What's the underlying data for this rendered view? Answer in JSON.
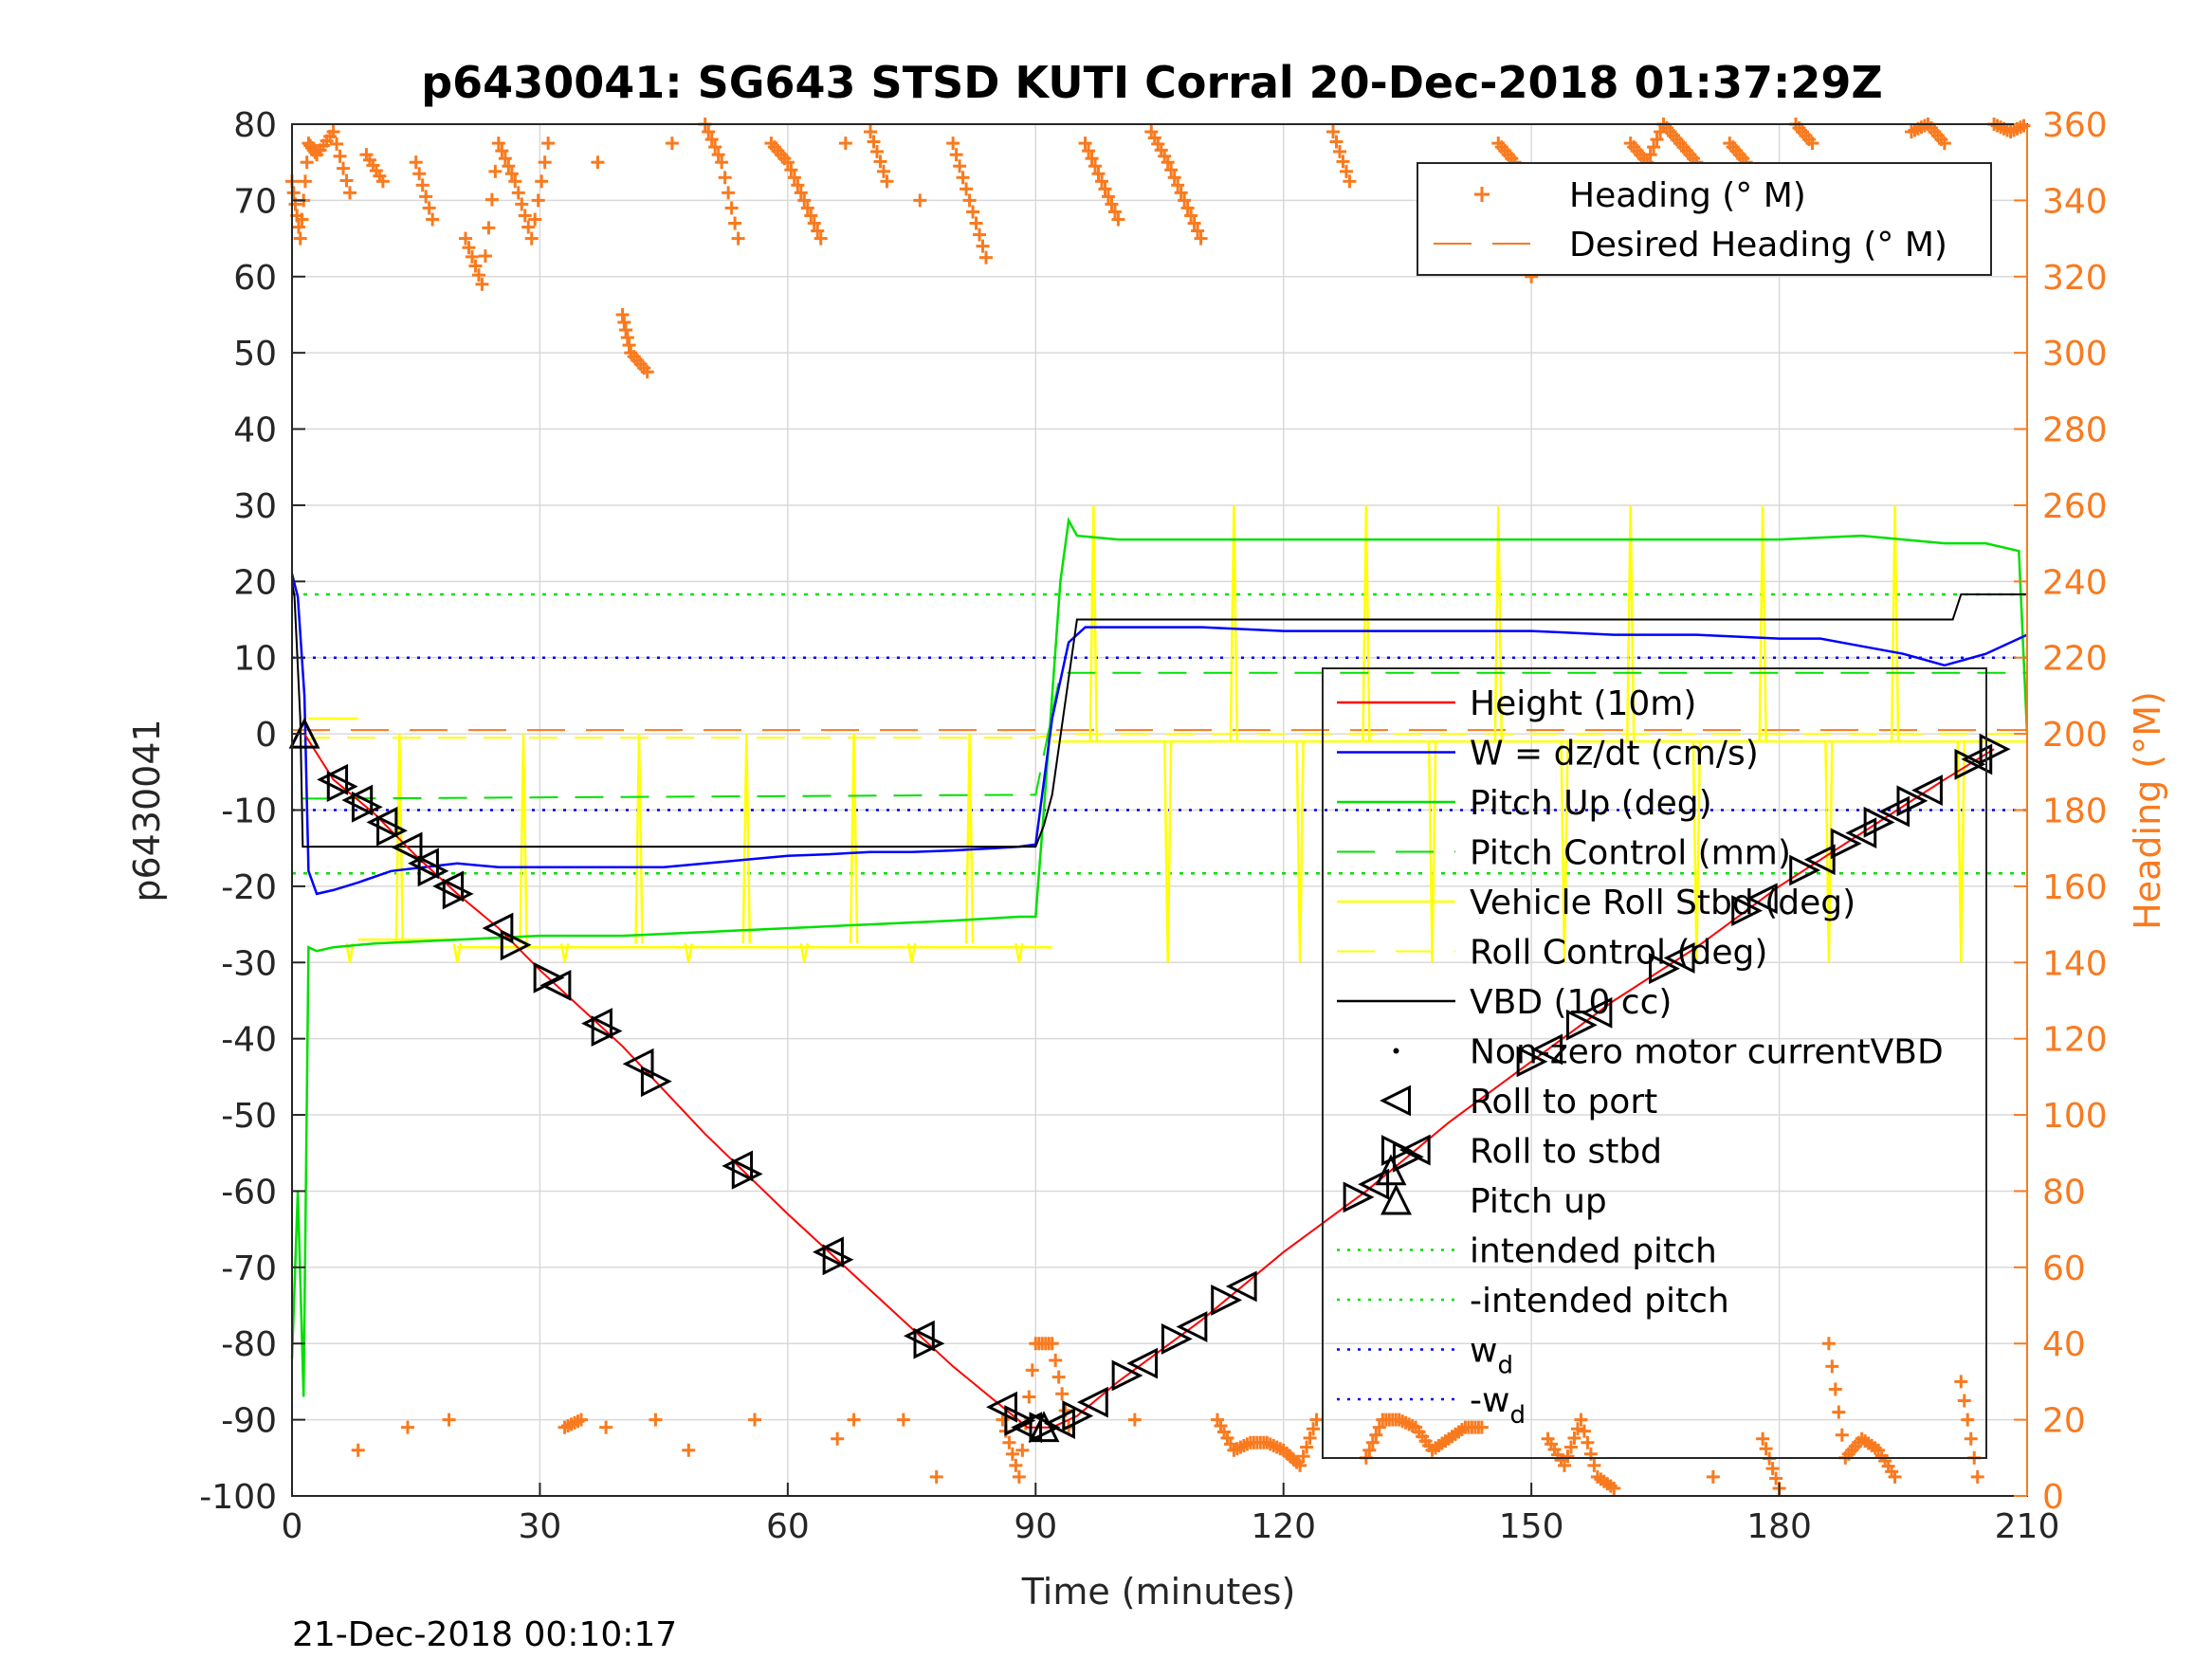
{
  "title": "p6430041: SG643 STSD KUTI Corral 20-Dec-2018 01:37:29Z",
  "timestamp": "21-Dec-2018 00:10:17",
  "colors": {
    "heading": "#f97a1e",
    "height": "#ff0000",
    "w": "#0000ff",
    "pitch": "#00e000",
    "roll": "#ffff00",
    "vbd": "#000000",
    "grid": "#d9d9d9"
  },
  "chart_data": {
    "type": "line",
    "xlabel": "Time (minutes)",
    "ylabel": "p6430041",
    "y2label": "Heading (°M)",
    "xlim": [
      0,
      210
    ],
    "ylim": [
      -100,
      80
    ],
    "y2lim": [
      0,
      360
    ],
    "grid": true,
    "legend_placement": "inside-right",
    "heading_legend_placement": "top-right",
    "xticks": [
      "0",
      "30",
      "60",
      "90",
      "120",
      "150",
      "180",
      "210"
    ],
    "xtick_values": [
      0,
      30,
      60,
      90,
      120,
      150,
      180,
      210
    ],
    "yticks": [
      "80",
      "70",
      "60",
      "50",
      "40",
      "30",
      "20",
      "10",
      "0",
      "-10",
      "-20",
      "-30",
      "-40",
      "-50",
      "-60",
      "-70",
      "-80",
      "-90",
      "-100"
    ],
    "ytick_values": [
      80,
      70,
      60,
      50,
      40,
      30,
      20,
      10,
      0,
      -10,
      -20,
      -30,
      -40,
      -50,
      -60,
      -70,
      -80,
      -90,
      -100
    ],
    "y2ticks": [
      "360",
      "340",
      "320",
      "300",
      "280",
      "260",
      "240",
      "220",
      "200",
      "180",
      "160",
      "140",
      "120",
      "100",
      "80",
      "60",
      "40",
      "20",
      "0"
    ],
    "y2tick_values": [
      360,
      340,
      320,
      300,
      280,
      260,
      240,
      220,
      200,
      180,
      160,
      140,
      120,
      100,
      80,
      60,
      40,
      20,
      0
    ],
    "heading_legend": [
      "Heading (° M)",
      "Desired Heading (° M)"
    ],
    "legend": [
      {
        "label": "Height (10m)"
      },
      {
        "label": "W = dz/dt (cm/s)"
      },
      {
        "label": "Pitch Up (deg)"
      },
      {
        "label": "Pitch Control (mm)"
      },
      {
        "label": "Vehicle Roll Stbd (deg)"
      },
      {
        "label": "Roll Control (deg)"
      },
      {
        "label": "VBD (10 cc)"
      },
      {
        "label": "Non-zero motor currentVBD"
      },
      {
        "label": "Roll to port"
      },
      {
        "label": "Roll to stbd"
      },
      {
        "label": "Pitch up"
      },
      {
        "label": "intended pitch"
      },
      {
        "label": "-intended pitch"
      },
      {
        "label": "w",
        "sub": "d"
      },
      {
        "label": "-w",
        "sub": "d"
      }
    ],
    "reference_lines": {
      "intended_pitch": 18.3,
      "minus_intended_pitch": -18.3,
      "w_d": 10,
      "minus_w_d": -10,
      "desired_heading": 201
    },
    "series": {
      "height": {
        "x": [
          1.5,
          5,
          10,
          15,
          20,
          25,
          30,
          40,
          50,
          60,
          70,
          80,
          89,
          92,
          95,
          100,
          110,
          120,
          130,
          140,
          150,
          160,
          170,
          180,
          190,
          200,
          206
        ],
        "y": [
          0,
          -6,
          -10.5,
          -16,
          -21,
          -25.5,
          -31,
          -41,
          -52.5,
          -63,
          -73,
          -83,
          -91,
          -91,
          -89.5,
          -85,
          -77,
          -68,
          -60,
          -51,
          -43,
          -35,
          -28,
          -20,
          -13,
          -6,
          -2
        ]
      },
      "w": {
        "x": [
          0,
          0.7,
          1.5,
          2,
          3,
          5,
          8,
          12,
          16,
          20,
          25,
          30,
          35,
          40,
          45,
          50,
          55,
          60,
          65,
          70,
          75,
          80,
          85,
          88,
          90,
          92,
          94,
          96,
          100,
          110,
          120,
          130,
          140,
          150,
          160,
          170,
          180,
          185,
          190,
          195,
          200,
          205,
          210
        ],
        "y": [
          21,
          18,
          5,
          -18,
          -21,
          -20.5,
          -19.5,
          -18,
          -17.5,
          -17,
          -17.5,
          -17.5,
          -17.5,
          -17.5,
          -17.5,
          -17,
          -16.5,
          -16,
          -15.8,
          -15.5,
          -15.5,
          -15.3,
          -15,
          -14.8,
          -14.5,
          2,
          12,
          14,
          14,
          14,
          13.5,
          13.5,
          13.5,
          13.5,
          13,
          13,
          12.5,
          12.5,
          11.5,
          10.5,
          9,
          10.5,
          13
        ]
      },
      "pitch": {
        "x": [
          0,
          0.7,
          1.4,
          2,
          3,
          5,
          10,
          20,
          30,
          40,
          50,
          60,
          70,
          80,
          88,
          90,
          91,
          93,
          94,
          95,
          100,
          110,
          120,
          140,
          160,
          180,
          190,
          200,
          205,
          209,
          210
        ],
        "y": [
          -82,
          -60,
          -87,
          -28,
          -28.5,
          -28,
          -27.5,
          -27,
          -26.5,
          -26.5,
          -26,
          -25.5,
          -25,
          -24.5,
          -24,
          -24,
          -10,
          20,
          28,
          26,
          25.5,
          25.5,
          25.5,
          25.5,
          25.5,
          25.5,
          26,
          25,
          25,
          24,
          0
        ]
      },
      "pitch_control": {
        "x": [
          1.2,
          3,
          90,
          93,
          210
        ],
        "y": [
          -8.5,
          -8.5,
          -8,
          8,
          8
        ]
      },
      "roll_control": {
        "x": [
          1.2,
          3,
          90,
          93,
          210
        ],
        "y": [
          -1,
          -0.5,
          -0.5,
          0,
          0
        ]
      },
      "vbd": {
        "x": [
          0,
          0.3,
          1,
          1.3,
          3,
          10,
          20,
          40,
          60,
          80,
          90,
          91,
          92,
          95,
          100,
          120,
          150,
          180,
          201,
          202,
          210
        ],
        "y": [
          20,
          18,
          2,
          -14.8,
          -14.8,
          -14.8,
          -14.8,
          -14.8,
          -14.8,
          -14.8,
          -14.8,
          -12,
          -8,
          15,
          15,
          15,
          15,
          15,
          15,
          18.3,
          18.3
        ]
      },
      "roll": {
        "baseline_segments": [
          {
            "x": [
              2,
              8
            ],
            "y": 2
          },
          {
            "x": [
              8,
              20
            ],
            "y": -27
          },
          {
            "x": [
              20,
              92
            ],
            "y": -28
          },
          {
            "x": [
              92,
              210
            ],
            "y": -1
          }
        ],
        "spikes_x": [
          7,
          13,
          20,
          28,
          33,
          42,
          48,
          55,
          62,
          68,
          75,
          82,
          88,
          97,
          106,
          114,
          122,
          130,
          138,
          146,
          154,
          162,
          170,
          178,
          186,
          194,
          202
        ]
      },
      "heading": {
        "x": [
          0,
          1,
          2,
          3,
          5,
          7,
          8,
          9,
          11,
          14,
          15,
          17,
          19,
          21,
          23,
          25,
          27,
          29,
          31,
          33,
          35,
          37,
          38,
          40,
          41,
          43,
          44,
          46,
          48,
          50,
          52,
          54,
          56,
          58,
          60,
          62,
          64,
          66,
          67,
          68,
          70,
          72,
          74,
          76,
          78,
          80,
          82,
          84,
          86,
          88,
          90,
          92,
          94,
          96,
          98,
          100,
          102,
          104,
          106,
          108,
          110,
          112,
          114,
          116,
          118,
          120,
          122,
          124,
          126,
          128,
          130,
          132,
          134,
          136,
          138,
          140,
          142,
          144,
          146,
          148,
          150,
          152,
          154,
          156,
          158,
          160,
          162,
          164,
          166,
          168,
          170,
          172,
          174,
          176,
          178,
          180,
          182,
          184,
          186,
          188,
          190,
          192,
          194,
          196,
          198,
          200,
          202,
          204,
          206,
          208,
          210
        ],
        "y": [
          345,
          330,
          355,
          352,
          358,
          342,
          12,
          352,
          345,
          18,
          350,
          335,
          20,
          330,
          318,
          355,
          345,
          330,
          355,
          18,
          20,
          350,
          18,
          310,
          300,
          295,
          20,
          355,
          12,
          360,
          350,
          330,
          20,
          355,
          350,
          340,
          330,
          15,
          355,
          20,
          358,
          345,
          20,
          340,
          5,
          355,
          340,
          325,
          20,
          5,
          40,
          40,
          18,
          355,
          345,
          335,
          20,
          358,
          350,
          340,
          330,
          20,
          12,
          14,
          14,
          12,
          8,
          20,
          358,
          345,
          10,
          20,
          20,
          18,
          12,
          15,
          18,
          18,
          355,
          350,
          320,
          15,
          8,
          20,
          5,
          2,
          355,
          350,
          360,
          355,
          350,
          5,
          355,
          350,
          15,
          2,
          360,
          355,
          40,
          10,
          15,
          12,
          5,
          358,
          360,
          355,
          30,
          5,
          360,
          358,
          360
        ]
      }
    },
    "markers": {
      "roll_to_port_x": [
        5,
        8,
        11,
        14,
        16,
        19,
        25,
        32,
        37,
        42,
        54,
        65,
        76,
        86,
        89,
        93,
        97,
        103,
        109,
        115,
        131,
        136,
        152,
        158,
        168,
        178,
        185,
        190,
        194,
        198,
        204
      ],
      "roll_to_stbd_x": [
        6,
        9,
        12,
        17,
        20,
        27,
        31,
        38,
        44,
        55,
        66,
        77,
        88,
        91,
        95,
        101,
        107,
        113,
        129,
        135,
        150,
        156,
        166,
        176,
        183,
        188,
        192,
        196,
        203,
        206
      ],
      "pitch_up_x": [
        1.5,
        91,
        133
      ]
    }
  }
}
